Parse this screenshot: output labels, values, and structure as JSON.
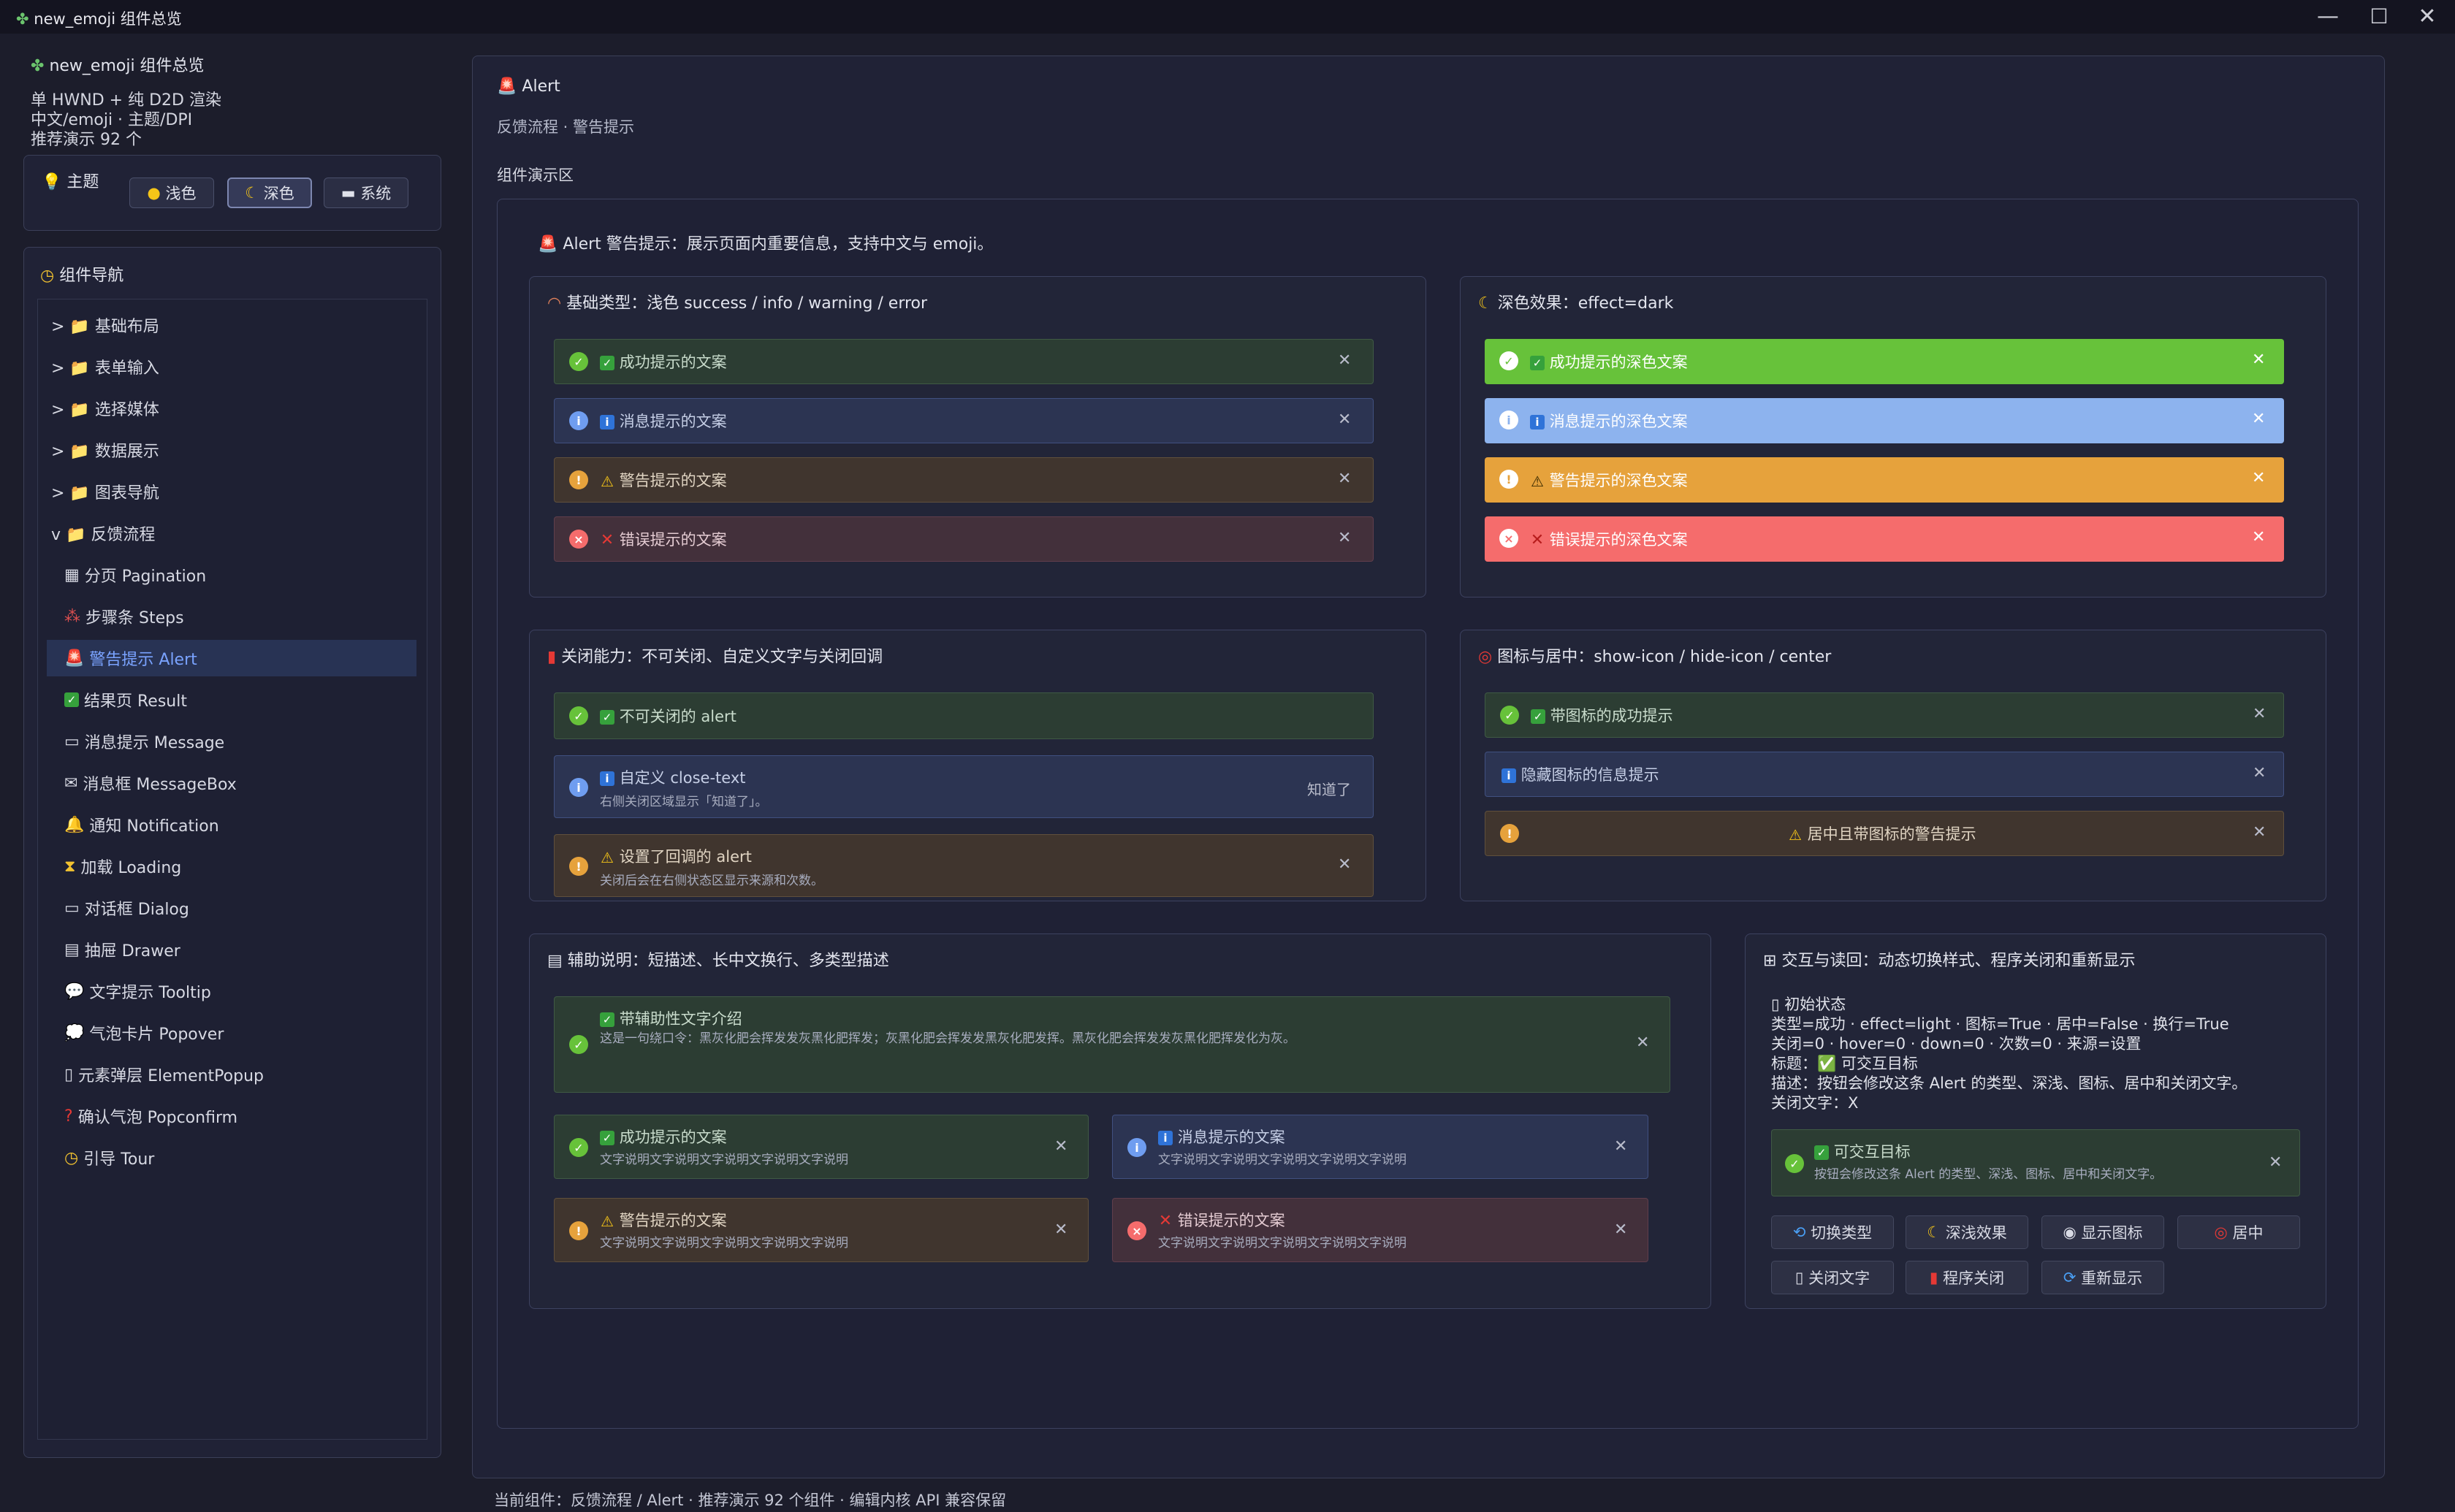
{
  "window": {
    "title": "new_emoji 组件总览",
    "app_icon": "sprout-icon"
  },
  "sidebar": {
    "app_title": "new_emoji 组件总览",
    "info_lines": [
      "单 HWND + 纯 D2D 渲染",
      "中文/emoji · 主题/DPI",
      "推荐演示 92 个"
    ],
    "theme_label": "主题",
    "theme_buttons": [
      "浅色",
      "深色",
      "系统"
    ],
    "theme_selected": "深色",
    "nav_title": "组件导航",
    "groups": [
      "> 📁 基础布局",
      "> 📁 表单输入",
      "> 📁 选择媒体",
      "> 📁 数据展示",
      "> 📁 图表导航",
      "v 📁 反馈流程"
    ],
    "items": [
      "分页 Pagination",
      "步骤条 Steps",
      "警告提示 Alert",
      "结果页 Result",
      "消息提示 Message",
      "消息框 MessageBox",
      "通知 Notification",
      "加载 Loading",
      "对话框 Dialog",
      "抽屉 Drawer",
      "文字提示 Tooltip",
      "气泡卡片 Popover",
      "元素弹层 ElementPopup",
      "确认气泡 Popconfirm",
      "引导 Tour"
    ],
    "selected_item": "警告提示 Alert"
  },
  "main": {
    "title": "Alert",
    "subtitle": "反馈流程 · 警告提示",
    "demo_area_label": "组件演示区",
    "intro": "Alert 警告提示：展示页面内重要信息，支持中文与 emoji。",
    "basic": {
      "title": "基础类型：浅色 success / info / warning / error",
      "alerts": [
        "成功提示的文案",
        "消息提示的文案",
        "警告提示的文案",
        "错误提示的文案"
      ]
    },
    "dark": {
      "title": "深色效果：effect=dark",
      "alerts": [
        "成功提示的深色文案",
        "消息提示的深色文案",
        "警告提示的深色文案",
        "错误提示的深色文案"
      ]
    },
    "closable": {
      "title": "关闭能力：不可关闭、自定义文字与关闭回调",
      "a1": "不可关闭的 alert",
      "a2_title": "自定义 close-text",
      "a2_desc": "右侧关闭区域显示「知道了」。",
      "a2_close": "知道了",
      "a3_title": "设置了回调的 alert",
      "a3_desc": "关闭后会在右侧状态区显示来源和次数。"
    },
    "icon_center": {
      "title": "图标与居中：show-icon / hide-icon / center",
      "a1": "带图标的成功提示",
      "a2": "隐藏图标的信息提示",
      "a3": "居中且带图标的警告提示"
    },
    "desc": {
      "title": "辅助说明：短描述、长中文换行、多类型描述",
      "a_title": "带辅助性文字介绍",
      "a_desc": "这是一句绕口令：黑灰化肥会挥发发灰黑化肥挥发；灰黑化肥会挥发发黑灰化肥发挥。黑灰化肥会挥发发灰黑化肥挥发化为灰。",
      "cells": [
        {
          "title": "成功提示的文案",
          "desc": "文字说明文字说明文字说明文字说明文字说明"
        },
        {
          "title": "消息提示的文案",
          "desc": "文字说明文字说明文字说明文字说明文字说明"
        },
        {
          "title": "警告提示的文案",
          "desc": "文字说明文字说明文字说明文字说明文字说明"
        },
        {
          "title": "错误提示的文案",
          "desc": "文字说明文字说明文字说明文字说明文字说明"
        }
      ]
    },
    "interact": {
      "title": "交互与读回：动态切换样式、程序关闭和重新显示",
      "state_title": "初始状态",
      "state_lines": [
        "类型=成功 · effect=light · 图标=True · 居中=False · 换行=True",
        "关闭=0 · hover=0 · down=0 · 次数=0 · 来源=设置",
        "标题：✅ 可交互目标",
        "描述：按钮会修改这条 Alert 的类型、深浅、图标、居中和关闭文字。",
        "关闭文字：X"
      ],
      "target_title": "可交互目标",
      "target_desc": "按钮会修改这条 Alert 的类型、深浅、图标、居中和关闭文字。",
      "buttons": [
        "切换类型",
        "深浅效果",
        "显示图标",
        "居中",
        "关闭文字",
        "程序关闭",
        "重新显示"
      ]
    }
  },
  "status_bar": "当前组件：反馈流程 / Alert · 推荐演示 92 个组件 · 编辑内核 API 兼容保留",
  "colors": {
    "success": "#67c23a",
    "info": "#8db3ee",
    "warning": "#e6a23c",
    "error": "#f56c6c",
    "selected_nav": "#7aa3ff"
  }
}
